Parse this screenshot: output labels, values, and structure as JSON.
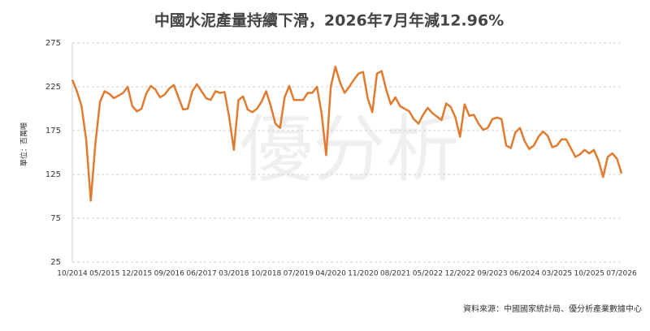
{
  "chart_data": {
    "type": "line",
    "title": "中國水泥產量持續下滑，2026年7月年減12.96%",
    "y_label": "單位：百萬噸",
    "source": "資料來源：中國國家統計局、優分析產業數據中心",
    "watermark": "優分析",
    "categories": [
      "10/2014",
      null,
      null,
      null,
      null,
      null,
      null,
      "05/2015",
      null,
      null,
      null,
      null,
      null,
      null,
      "12/2015",
      null,
      null,
      null,
      null,
      null,
      null,
      "09/2016",
      null,
      null,
      null,
      null,
      null,
      null,
      "06/2017",
      null,
      null,
      null,
      null,
      null,
      null,
      "03/2018",
      null,
      null,
      null,
      null,
      null,
      null,
      "10/2018",
      null,
      null,
      null,
      null,
      null,
      null,
      "07/2019",
      null,
      null,
      null,
      null,
      null,
      null,
      "04/2020",
      null,
      null,
      null,
      null,
      null,
      null,
      "11/2020",
      null,
      null,
      null,
      null,
      null,
      null,
      "08/2021",
      null,
      null,
      null,
      null,
      null,
      null,
      "05/2022",
      null,
      null,
      null,
      null,
      null,
      null,
      "12/2022",
      null,
      null,
      null,
      null,
      null,
      null,
      "09/2023",
      null,
      null,
      null,
      null,
      null,
      null,
      "06/2024",
      null,
      null,
      null,
      null,
      null,
      null,
      "03/2025",
      null,
      null,
      null,
      null,
      null,
      null,
      "10/2025",
      null,
      null,
      null,
      null,
      null,
      null,
      "07/2026"
    ],
    "color": "#e07b30",
    "values": [
      233,
      220,
      203,
      165,
      95,
      160,
      208,
      220,
      217,
      212,
      215,
      218,
      225,
      203,
      197,
      200,
      217,
      226,
      222,
      213,
      216,
      223,
      227,
      213,
      199,
      200,
      220,
      228,
      220,
      212,
      210,
      220,
      218,
      219,
      190,
      153,
      210,
      214,
      199,
      196,
      200,
      208,
      220,
      203,
      183,
      178,
      213,
      226,
      210,
      210,
      210,
      218,
      218,
      225,
      195,
      147,
      225,
      248,
      230,
      218,
      225,
      233,
      240,
      242,
      212,
      196,
      240,
      243,
      222,
      205,
      213,
      203,
      200,
      197,
      188,
      183,
      193,
      201,
      195,
      191,
      187,
      206,
      202,
      190,
      168,
      205,
      192,
      193,
      183,
      176,
      178,
      188,
      190,
      188,
      158,
      155,
      173,
      178,
      163,
      154,
      158,
      168,
      174,
      169,
      156,
      158,
      165,
      165,
      155,
      145,
      148,
      153,
      149,
      153,
      141,
      122,
      145,
      149,
      143,
      126
    ],
    "ylim": [
      25,
      275
    ],
    "yticks": [
      25,
      75,
      125,
      175,
      225,
      275
    ],
    "grid": true
  }
}
